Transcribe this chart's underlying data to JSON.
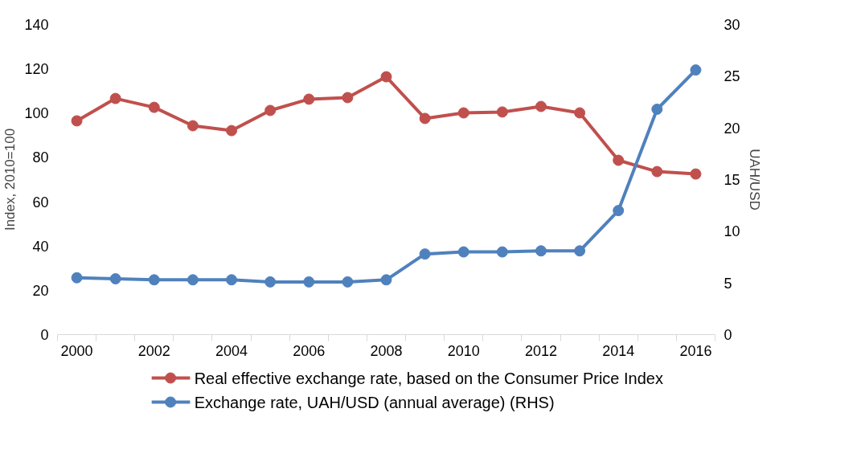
{
  "chart_data": {
    "type": "line",
    "ylabel": "Index, 2010=100",
    "y2label": "UAH/USD",
    "categories": [
      "2000",
      null,
      "2002",
      null,
      "2004",
      null,
      "2006",
      null,
      "2008",
      null,
      "2010",
      null,
      "2012",
      null,
      "2014",
      null,
      "2016"
    ],
    "series": [
      {
        "name": "Real effective exchange rate, based on the Consumer Price Index",
        "color": "#c0504d",
        "values": [
          96.5,
          106.6,
          102.6,
          94.3,
          92.1,
          101.2,
          106.3,
          107.0,
          116.4,
          97.6,
          100.1,
          100.5,
          103.0,
          100.1,
          78.7,
          73.6,
          72.5
        ]
      },
      {
        "name": "Exchange rate, UAH/USD (annual average) (RHS)",
        "color": "#4f81bd",
        "axis": "y2",
        "values": [
          5.5,
          5.4,
          5.3,
          5.3,
          5.3,
          5.1,
          5.1,
          5.1,
          5.3,
          7.8,
          8.0,
          8.0,
          8.1,
          8.1,
          12.0,
          21.8,
          25.6
        ]
      }
    ],
    "ylim": [
      0,
      140
    ],
    "yticks": [
      0,
      20,
      40,
      60,
      80,
      100,
      120,
      140
    ],
    "y2lim": [
      0,
      30
    ],
    "y2ticks": [
      0,
      5,
      10,
      15,
      20,
      25,
      30
    ],
    "grid": false,
    "legend": "bottom",
    "marker": "circle",
    "line_style": "solid"
  }
}
